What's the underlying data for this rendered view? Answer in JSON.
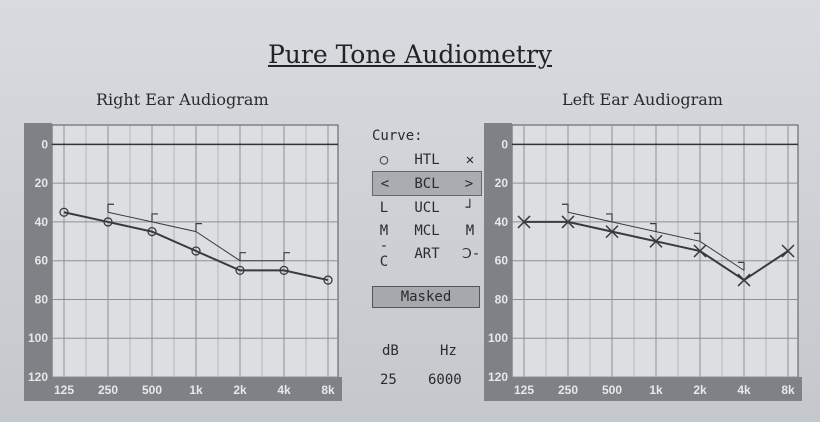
{
  "page": {
    "title": "Pure Tone Audiometry"
  },
  "legend": {
    "title": "Curve:",
    "items": [
      {
        "left_symbol": "○",
        "label": "HTL",
        "right_symbol": "✕"
      },
      {
        "left_symbol": "<",
        "label": "BCL",
        "right_symbol": ">"
      },
      {
        "left_symbol": "L",
        "label": "UCL",
        "right_symbol": "┘"
      },
      {
        "left_symbol": "M",
        "label": "MCL",
        "right_symbol": "M"
      },
      {
        "left_symbol": "-C",
        "label": "ART",
        "right_symbol": "Ↄ-"
      }
    ],
    "masked_label": "Masked"
  },
  "readout": {
    "db_label": "dB",
    "hz_label": "Hz",
    "db_value": "25",
    "hz_value": "6000"
  },
  "colors": {
    "gridline": "#8d9094",
    "axis_band": "#7e8185",
    "data": "#3a3a3a"
  },
  "chart_data": [
    {
      "type": "line",
      "title": "Right Ear Audiogram",
      "x_tick_labels": [
        "125",
        "250",
        "500",
        "1k",
        "2k",
        "4k",
        "8k"
      ],
      "y_tick_labels": [
        "0",
        "20",
        "40",
        "60",
        "80",
        "100",
        "120"
      ],
      "ylim": [
        -10,
        120
      ],
      "y_inverted": true,
      "grid": true,
      "series": [
        {
          "name": "HTL",
          "marker": "circle",
          "x": [
            "125",
            "250",
            "500",
            "1k",
            "2k",
            "4k",
            "8k"
          ],
          "y": [
            35,
            40,
            45,
            55,
            65,
            65,
            70
          ]
        },
        {
          "name": "BCL",
          "marker": "bracket",
          "x": [
            "250",
            "500",
            "1k",
            "2k",
            "4k"
          ],
          "y": [
            35,
            40,
            45,
            60,
            60
          ]
        }
      ]
    },
    {
      "type": "line",
      "title": "Left Ear Audiogram",
      "x_tick_labels": [
        "125",
        "250",
        "500",
        "1k",
        "2k",
        "4k",
        "8k"
      ],
      "y_tick_labels": [
        "0",
        "20",
        "40",
        "60",
        "80",
        "100",
        "120"
      ],
      "ylim": [
        -10,
        120
      ],
      "y_inverted": true,
      "grid": true,
      "series": [
        {
          "name": "HTL",
          "marker": "cross",
          "x": [
            "125",
            "250",
            "500",
            "1k",
            "2k",
            "4k",
            "8k"
          ],
          "y": [
            40,
            40,
            45,
            50,
            55,
            70,
            55
          ]
        },
        {
          "name": "BCL",
          "marker": "bracket",
          "x": [
            "250",
            "500",
            "1k",
            "2k",
            "4k"
          ],
          "y": [
            35,
            40,
            45,
            50,
            65
          ]
        }
      ]
    }
  ]
}
